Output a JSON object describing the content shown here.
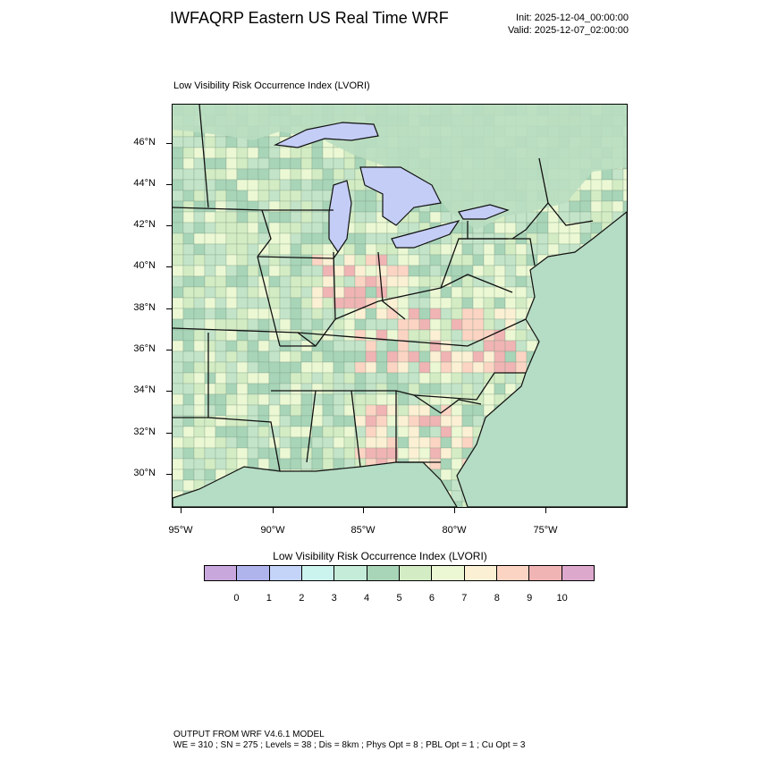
{
  "header": {
    "title": "IWFAQRP Eastern US Real Time WRF",
    "init": "Init: 2025-12-04_00:00:00",
    "valid": "Valid: 2025-12-07_02:00:00"
  },
  "map": {
    "subtitle": "Low Visibility Risk Occurrence Index   (LVORI)",
    "lat_labels": [
      "46°N",
      "44°N",
      "42°N",
      "40°N",
      "38°N",
      "36°N",
      "34°N",
      "32°N",
      "30°N"
    ],
    "lon_labels": [
      "95°W",
      "90°W",
      "85°W",
      "80°W",
      "75°W"
    ],
    "colors": {
      "ocean": "#b5dcc4",
      "lake": "#c4cdf5",
      "land_base": "#c4e4c9",
      "border": "#111111"
    }
  },
  "legend": {
    "title": "Low Visibility Risk Occurrence Index  (LVORI)",
    "labels": [
      "0",
      "1",
      "2",
      "3",
      "4",
      "5",
      "6",
      "7",
      "8",
      "9",
      "10"
    ],
    "colors": [
      "#c8a8dc",
      "#b0b4ec",
      "#c4d4f8",
      "#ccf4ee",
      "#c4ecd8",
      "#a8d4b8",
      "#d4ecc4",
      "#ecf8d4",
      "#fcf0d4",
      "#fcd4c4",
      "#f0b4b4",
      "#dca8cc"
    ]
  },
  "footer": {
    "line1": "OUTPUT FROM WRF V4.6.1 MODEL",
    "line2": "WE = 310 ; SN = 275 ; Levels = 38 ; Dis = 8km ; Phys Opt = 8 ; PBL Opt = 1 ; Cu Opt = 3"
  }
}
